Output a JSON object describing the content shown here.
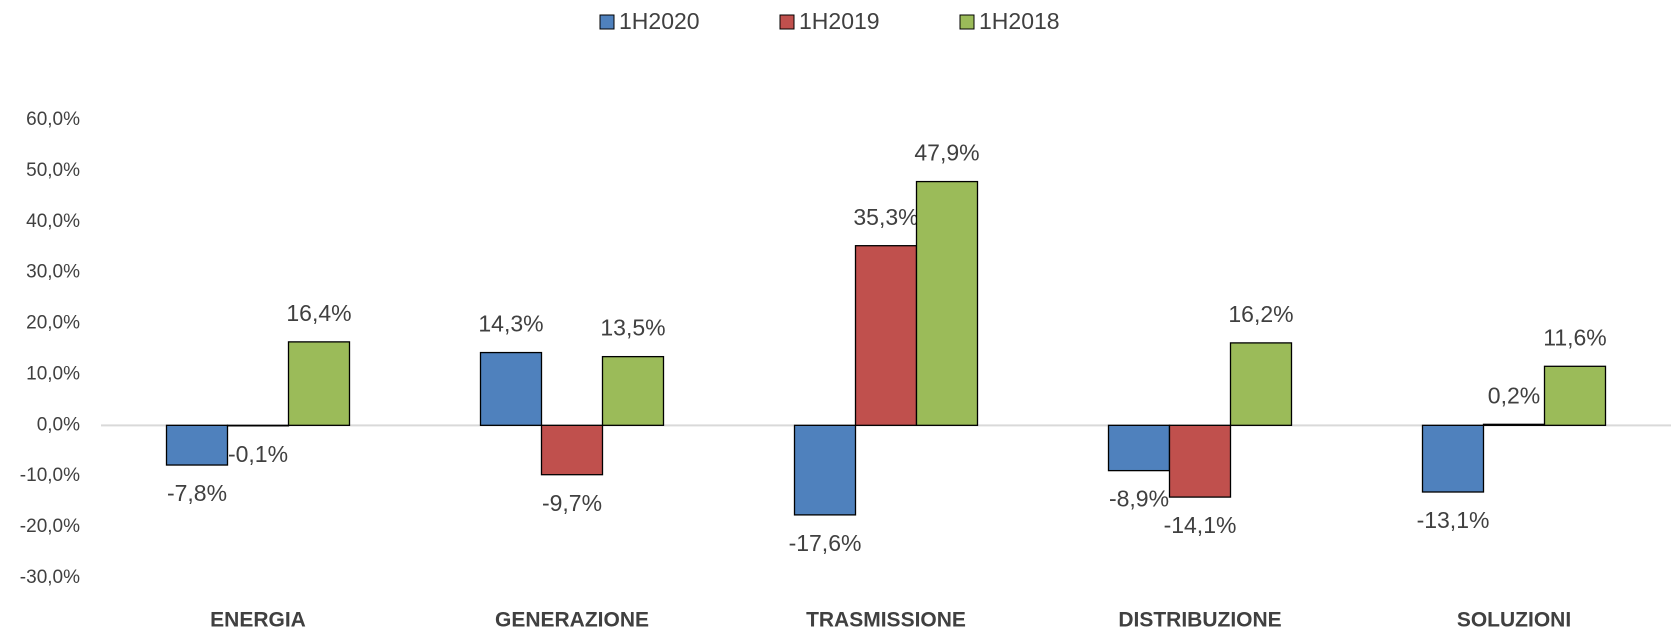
{
  "chart_data": {
    "type": "bar",
    "categories": [
      "ENERGIA",
      "GENERAZIONE",
      "TRASMISSIONE",
      "DISTRIBUZIONE",
      "SOLUZIONI"
    ],
    "series": [
      {
        "name": "1H2020",
        "color": "#4f81bd",
        "values": [
          -7.8,
          14.3,
          -17.6,
          -8.9,
          -13.1
        ],
        "value_labels": [
          "-7,8%",
          "14,3%",
          "-17,6%",
          "-8,9%",
          "-13,1%"
        ]
      },
      {
        "name": "1H2019",
        "color": "#c0504d",
        "values": [
          -0.1,
          -9.7,
          35.3,
          -14.1,
          0.2
        ],
        "value_labels": [
          "-0,1%",
          "-9,7%",
          "35,3%",
          "-14,1%",
          "0,2%"
        ]
      },
      {
        "name": "1H2018",
        "color": "#9bbb59",
        "values": [
          16.4,
          13.5,
          47.9,
          16.2,
          11.6
        ],
        "value_labels": [
          "16,4%",
          "13,5%",
          "47,9%",
          "16,2%",
          "11,6%"
        ]
      }
    ],
    "ylim": [
      -30,
      60
    ],
    "yticks": [
      {
        "value": -30,
        "label": "-30,0%"
      },
      {
        "value": -20,
        "label": "-20,0%"
      },
      {
        "value": -10,
        "label": "-10,0%"
      },
      {
        "value": 0,
        "label": "0,0%"
      },
      {
        "value": 10,
        "label": "10,0%"
      },
      {
        "value": 20,
        "label": "20,0%"
      },
      {
        "value": 30,
        "label": "30,0%"
      },
      {
        "value": 40,
        "label": "40,0%"
      },
      {
        "value": 50,
        "label": "50,0%"
      },
      {
        "value": 60,
        "label": "60,0%"
      }
    ],
    "grid": false,
    "legend": "top"
  }
}
